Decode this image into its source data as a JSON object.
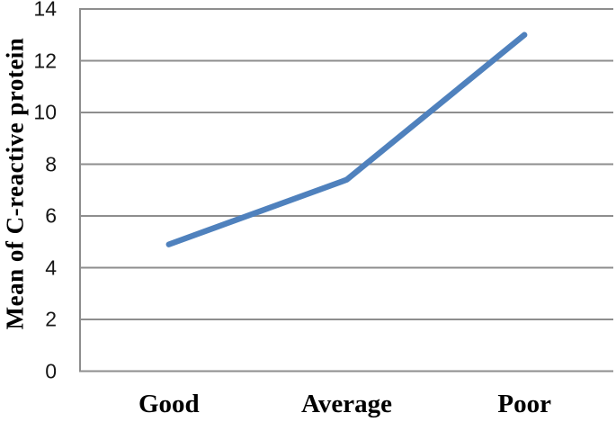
{
  "chart_data": {
    "type": "line",
    "title": "",
    "categories": [
      "Good",
      "Average",
      "Poor"
    ],
    "series": [
      {
        "name": "Mean of C-reactive protein",
        "values": [
          4.9,
          7.4,
          13.0
        ]
      }
    ],
    "xlabel": "",
    "ylabel": "Mean of C-reactive protein",
    "ylim": [
      0,
      14
    ],
    "ytick_interval": 2,
    "yticks": [
      14,
      12,
      10,
      8,
      6,
      4,
      2,
      0
    ],
    "grid": "horizontal gridlines on, extending full plot width",
    "legend_position": "none",
    "line_color": "#4f81bd",
    "grid_color": "#8e8e8e",
    "axis_color": "#8e8e8e",
    "text_color": "#161616"
  }
}
